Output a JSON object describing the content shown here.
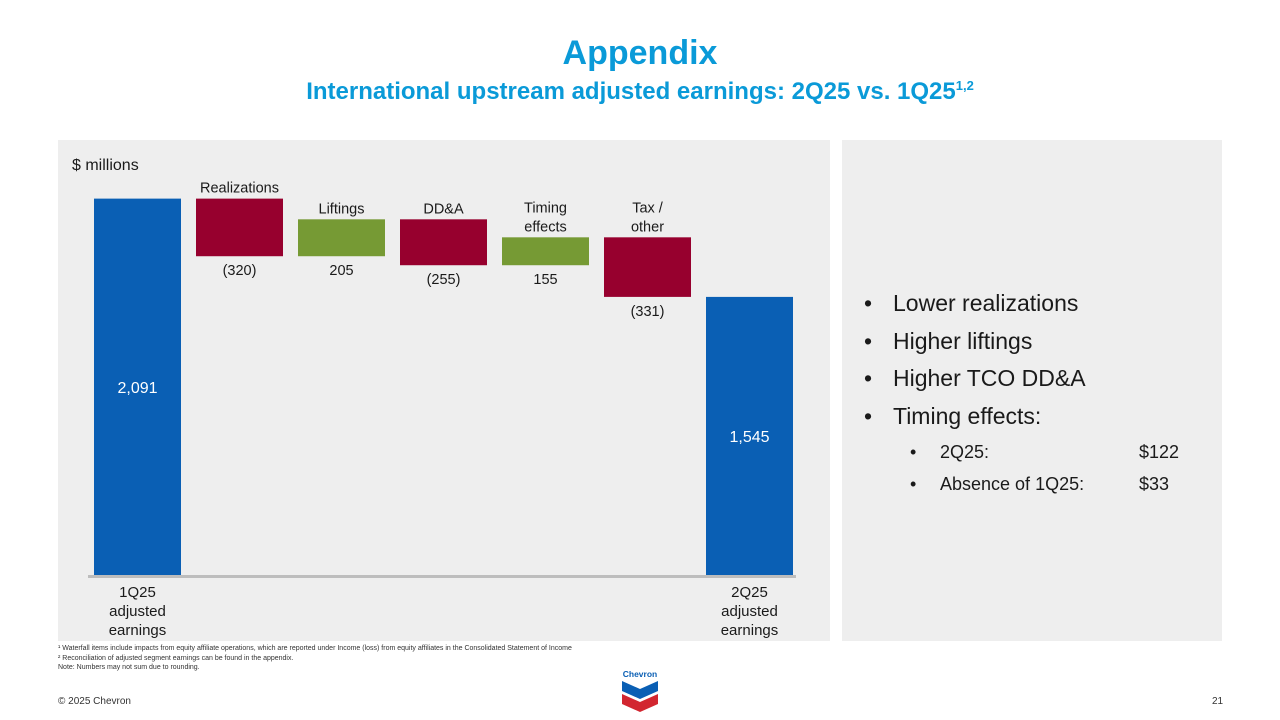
{
  "header": {
    "title": "Appendix",
    "subtitle": "International upstream adjusted earnings: 2Q25 vs. 1Q25",
    "subtitle_sup": "1,2"
  },
  "chart_data": {
    "type": "waterfall",
    "unit_label": "$ millions",
    "ylim": [
      0,
      2200
    ],
    "grid": false,
    "steps": [
      {
        "label": [
          "1Q25",
          "adjusted",
          "earnings"
        ],
        "value": 2091,
        "display": "2,091",
        "kind": "total",
        "label_pos": "bottom"
      },
      {
        "label": [
          "Realizations"
        ],
        "value": -320,
        "display": "(320)",
        "kind": "decrease",
        "label_pos": "top"
      },
      {
        "label": [
          "Liftings"
        ],
        "value": 205,
        "display": "205",
        "kind": "increase",
        "label_pos": "top"
      },
      {
        "label": [
          "DD&A"
        ],
        "value": -255,
        "display": "(255)",
        "kind": "decrease",
        "label_pos": "top"
      },
      {
        "label": [
          "Timing",
          "effects"
        ],
        "value": 155,
        "display": "155",
        "kind": "increase",
        "label_pos": "top"
      },
      {
        "label": [
          "Tax /",
          "other"
        ],
        "value": -331,
        "display": "(331)",
        "kind": "decrease",
        "label_pos": "top"
      },
      {
        "label": [
          "2Q25",
          "adjusted",
          "earnings"
        ],
        "value": 1545,
        "display": "1,545",
        "kind": "total",
        "label_pos": "bottom"
      }
    ],
    "colors": {
      "total": "#0a5fb4",
      "increase": "#769a34",
      "decrease": "#97002e",
      "baseline": "#bdbdbd"
    }
  },
  "commentary": {
    "bullets": [
      "Lower realizations",
      "Higher liftings",
      "Higher TCO DD&A",
      "Timing effects:"
    ],
    "sub_bullets": [
      {
        "label": "2Q25:",
        "amount": "$122"
      },
      {
        "label": "Absence of 1Q25:",
        "amount": "$33"
      }
    ]
  },
  "footnotes": [
    "¹ Waterfall items include impacts from equity affiliate operations, which are reported under Income (loss) from equity affiliates in the Consolidated Statement of Income",
    "² Reconciliation of adjusted segment earnings can be found in the appendix.",
    "Note: Numbers may not sum due to rounding."
  ],
  "footer": {
    "copyright": "© 2025 Chevron",
    "page_number": "21",
    "logo_text": "Chevron"
  }
}
